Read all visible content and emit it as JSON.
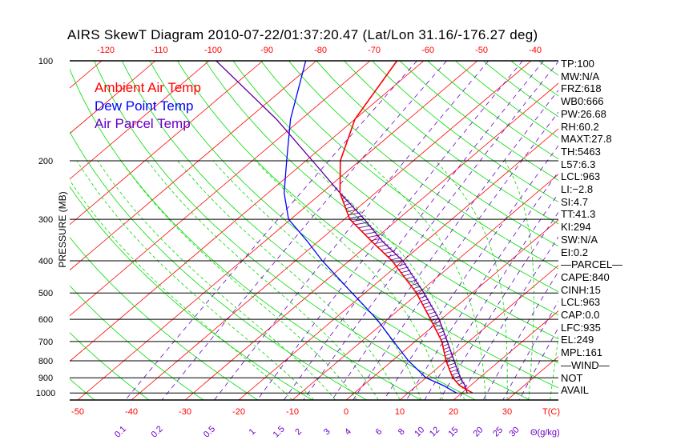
{
  "title": "AIRS SkewT Diagram 2010-07-22/01:37:20.47 (Lat/Lon 31.16/-176.27 deg)",
  "colors": {
    "temp": "#ff0000",
    "dewpoint": "#0000ff",
    "parcel": "#5a00a0",
    "dry_adiabat": "#00dd00",
    "moist_adiabat": "#00dd00",
    "isotherm": "#ff0000",
    "mixing_ratio": "#6a00c8",
    "hatch": "#5a00a0"
  },
  "legend": [
    "Ambient Air Temp",
    "Dew Point Temp",
    "Air Parcel Temp"
  ],
  "stats": [
    "TP:100",
    "MW:N/A",
    "FRZ:618",
    "WB0:666",
    "PW:26.68",
    "RH:60.2",
    "MAXT:27.8",
    "TH:5463",
    "L57:6.3",
    "LCL:963",
    "LI:−2.8",
    "SI:4.7",
    "TT:41.3",
    "KI:294",
    "SW:N/A",
    "EI:0.2",
    "—PARCEL—",
    "CAPE:840",
    "CINH:15",
    "LCL:963",
    "CAP:0.0",
    "LFC:935",
    "EL:249",
    "MPL:161",
    "—WIND—",
    "NOT",
    "AVAIL"
  ],
  "chart_data": {
    "type": "line",
    "title": "AIRS SkewT Diagram 2010-07-22/01:37:20.47 (Lat/Lon 31.16/-176.27 deg)",
    "xlabel": "T(C)",
    "ylabel": "PRESSURE (MB)",
    "mixing_ratio_label": "Θ(g/kg)",
    "y_scale": "log",
    "ylim": [
      1050,
      100
    ],
    "y_ticks": [
      100,
      200,
      300,
      400,
      500,
      600,
      700,
      800,
      900,
      1000
    ],
    "x_ticks_bottom": [
      -50,
      -40,
      -30,
      -20,
      -10,
      0,
      10,
      20,
      30
    ],
    "x_ticks_top": [
      -120,
      -110,
      -100,
      -90,
      -80,
      -70,
      -60,
      -50,
      -40
    ],
    "mixing_ratio_ticks": [
      "0.1",
      "0.2",
      "0.5",
      "1",
      "1.5",
      "2",
      "3",
      "4",
      "6",
      "8",
      "10",
      "12",
      "15",
      "20",
      "25",
      "30"
    ],
    "pressure": [
      100,
      150,
      200,
      250,
      300,
      350,
      400,
      500,
      600,
      700,
      800,
      900,
      950,
      1000
    ],
    "series": [
      {
        "name": "Ambient Air Temp",
        "values": [
          -65,
          -60,
          -53.6,
          -46.6,
          -39,
          -30,
          -22,
          -10.4,
          -2,
          5,
          10,
          15,
          18,
          22
        ]
      },
      {
        "name": "Dew Point Temp",
        "values": [
          -82,
          -72,
          -63.6,
          -57,
          -50.4,
          -42,
          -35,
          -22.4,
          -12,
          -4,
          3,
          10,
          15,
          19
        ]
      },
      {
        "name": "Air Parcel Temp",
        "values": [
          -98.7,
          -74.6,
          -58.8,
          -46.6,
          -36.3,
          -28,
          -20,
          -9,
          -0.4,
          6,
          11.5,
          16.4,
          19,
          21
        ]
      }
    ],
    "grid": true,
    "legend_position": "top-left"
  }
}
